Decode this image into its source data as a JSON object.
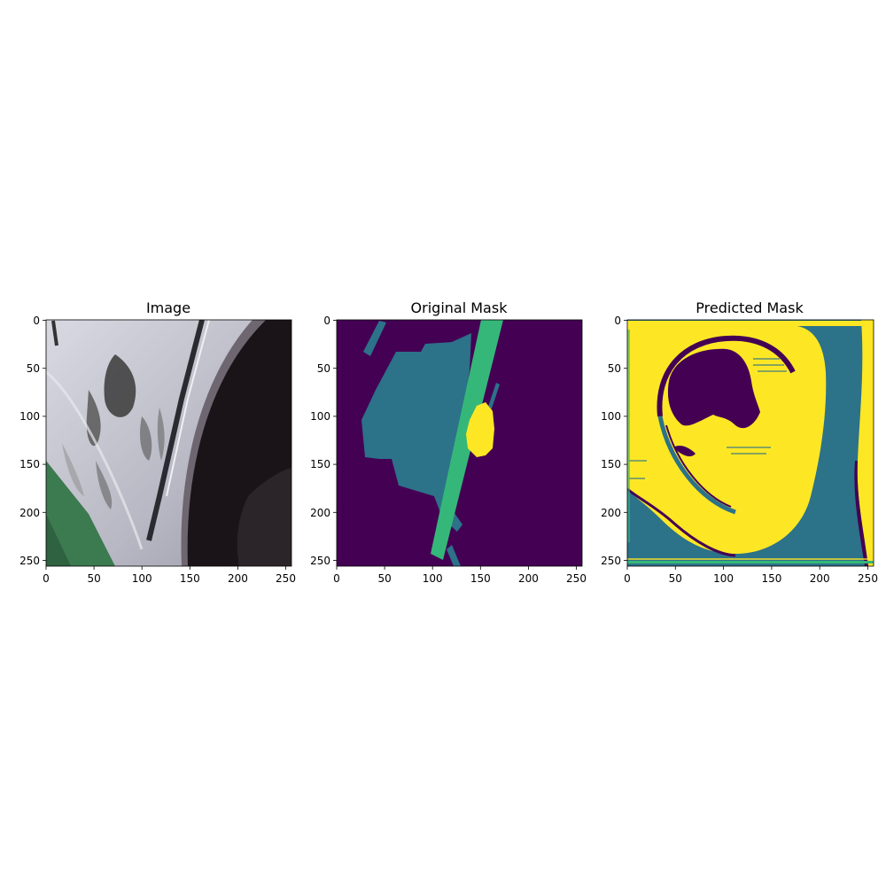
{
  "panels": [
    {
      "title": "Image",
      "x_ticks": [
        "0",
        "50",
        "100",
        "150",
        "200",
        "250"
      ],
      "y_ticks": [
        "0",
        "50",
        "100",
        "150",
        "200",
        "250"
      ]
    },
    {
      "title": "Original Mask",
      "x_ticks": [
        "0",
        "50",
        "100",
        "150",
        "200",
        "250"
      ],
      "y_ticks": [
        "0",
        "50",
        "100",
        "150",
        "200",
        "250"
      ]
    },
    {
      "title": "Predicted Mask",
      "x_ticks": [
        "0",
        "50",
        "100",
        "150",
        "200",
        "250"
      ],
      "y_ticks": [
        "0",
        "50",
        "100",
        "150",
        "200",
        "250"
      ]
    }
  ],
  "colors": {
    "viridis_0": "#440154",
    "viridis_1": "#2c7289",
    "viridis_2": "#35b779",
    "viridis_3": "#fde725",
    "car_paint": "#c8c8d0",
    "shadow": "#1a1418",
    "floor": "#3c7a50"
  }
}
